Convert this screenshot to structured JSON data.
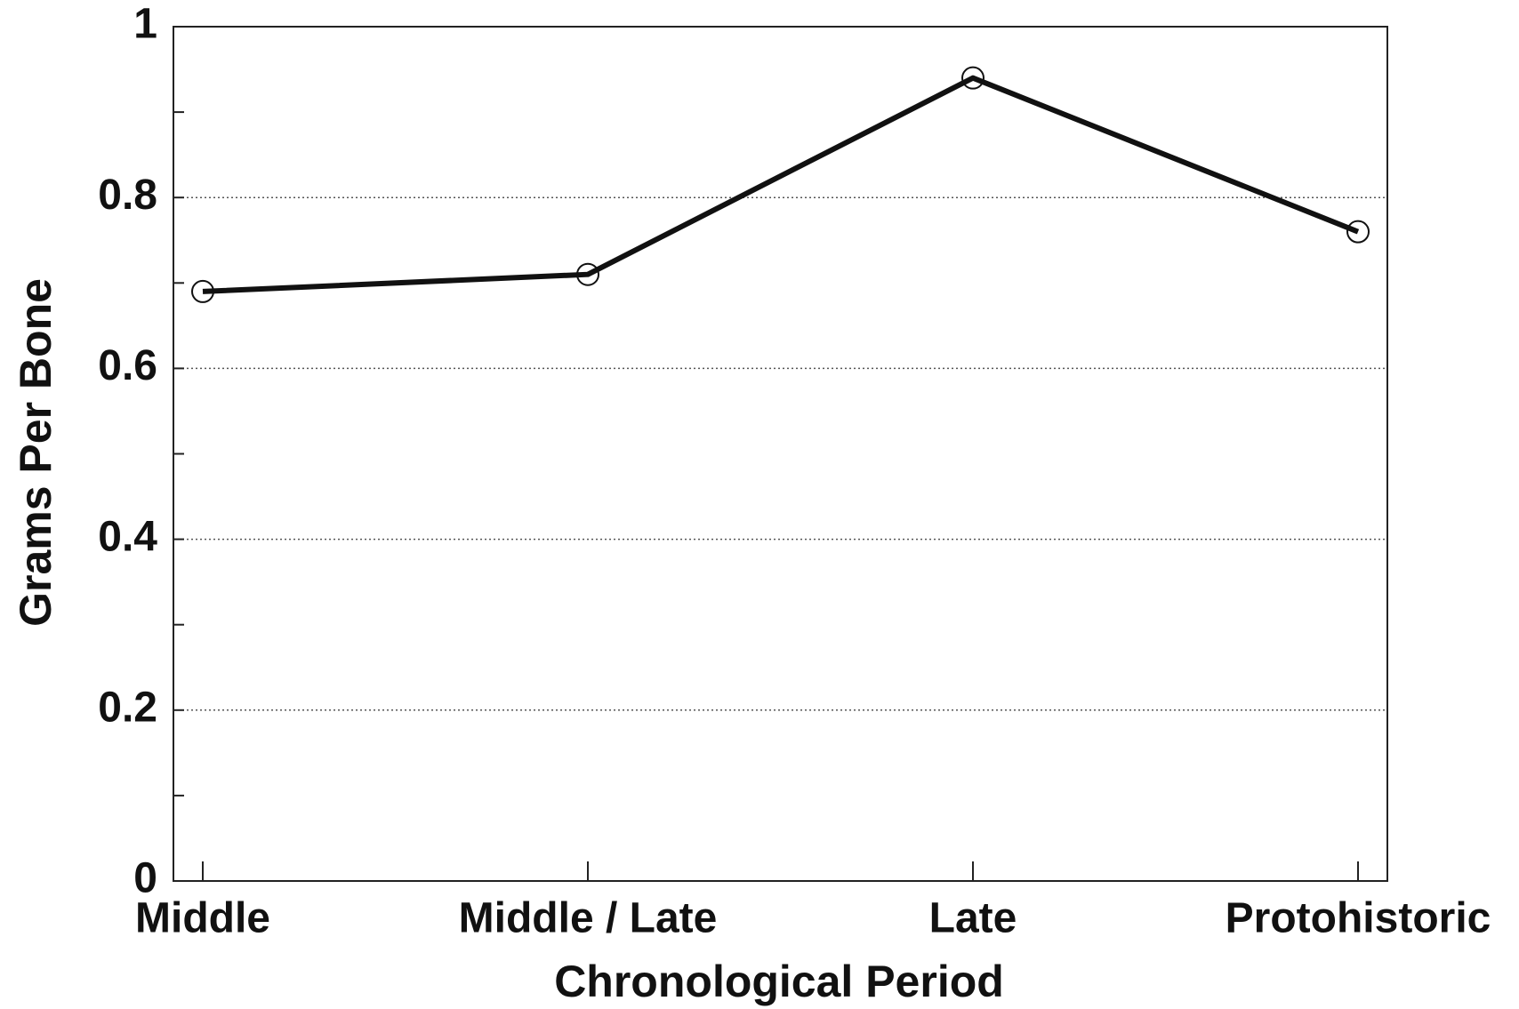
{
  "chart_data": {
    "type": "line",
    "categories": [
      "Middle",
      "Middle / Late",
      "Late",
      "Protohistoric"
    ],
    "series": [
      {
        "name": "Grams Per Bone",
        "color": "#111111",
        "values": [
          0.69,
          0.71,
          0.94,
          0.76
        ]
      }
    ],
    "x_label": "Chronological Period",
    "y_label": "Grams Per Bone",
    "ylim": [
      0,
      1
    ],
    "yticks": [
      0,
      0.2,
      0.4,
      0.6,
      0.8,
      1
    ],
    "grid": true
  }
}
